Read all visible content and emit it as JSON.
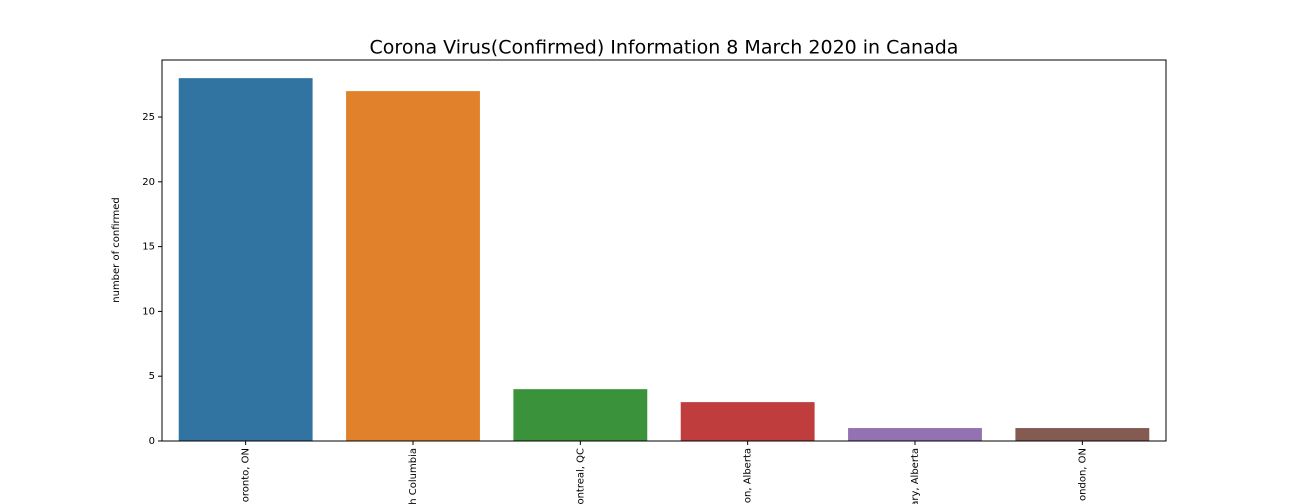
{
  "chart_data": {
    "type": "bar",
    "title": "Corona Virus(Confirmed) Information 8 March 2020 in Canada",
    "y_label": "number of confirmed",
    "categories": [
      "oronto, ON",
      "h Columbia",
      "ontreal, QC",
      "on, Alberta",
      "ary, Alberta",
      "ondon, ON"
    ],
    "values": [
      28,
      27,
      4,
      3,
      1,
      1
    ],
    "colors": [
      "#3274a1",
      "#e1812c",
      "#3a923a",
      "#c03d3e",
      "#9372b2",
      "#845b53"
    ],
    "ylim": [
      0,
      29.4
    ],
    "yticks": [
      0,
      5,
      10,
      15,
      20,
      25
    ]
  }
}
